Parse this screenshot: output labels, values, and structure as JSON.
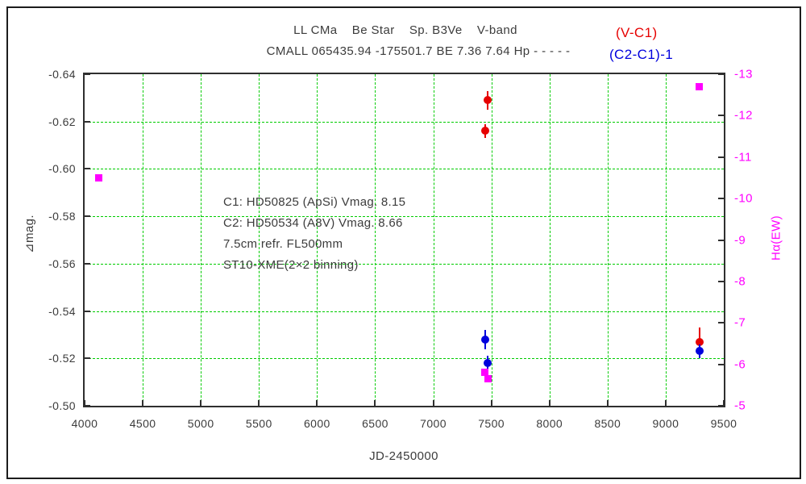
{
  "title": {
    "line1": "LL CMa    Be Star    Sp. B3Ve    V-band",
    "line2": "CMALL 065435.94 -175501.7 BE 7.36 7.64 Hp - - - - -"
  },
  "legend": {
    "items": [
      {
        "label": "(V-C1)",
        "color": "#e60000"
      },
      {
        "label": "(C2-C1)-1",
        "color": "#0000dd"
      }
    ]
  },
  "annotation": {
    "lines": [
      "C1: HD50825 (ApSi) Vmag. 8.15",
      "C2: HD50534 (A8V) Vmag. 8.66",
      "7.5cm refr. FL500mm",
      "ST10-XME(2×2 binning)"
    ]
  },
  "chart_data": {
    "type": "scatter",
    "title": "LL CMa  Be Star  Sp. B3Ve  V-band",
    "subtitle": "CMALL 065435.94 -175501.7 BE 7.36 7.64 Hp - - - - -",
    "xlabel": "JD-2450000",
    "ylabel_left": "⊿mag.",
    "ylabel_right": "Hα(EW)",
    "xlim": [
      4000,
      9500
    ],
    "ylim_left": [
      -0.64,
      -0.5
    ],
    "ylim_right": [
      -13,
      -5
    ],
    "x_ticks": [
      4000,
      4500,
      5000,
      5500,
      6000,
      6500,
      7000,
      7500,
      8000,
      8500,
      9000,
      9500
    ],
    "y_ticks_left": [
      -0.64,
      -0.62,
      -0.6,
      -0.58,
      -0.56,
      -0.54,
      -0.52,
      -0.5
    ],
    "y_ticks_right": [
      -13,
      -12,
      -11,
      -10,
      -9,
      -8,
      -7,
      -6,
      -5
    ],
    "grid": {
      "show": true,
      "style": "dashed",
      "color": "#00cc00"
    },
    "legend_position": "top-right",
    "series": [
      {
        "name": "(V-C1)",
        "axis": "left",
        "marker": "circle",
        "color": "#e60000",
        "points": [
          {
            "x": 7450,
            "y": -0.616,
            "err": 0.003
          },
          {
            "x": 7470,
            "y": -0.629,
            "err": 0.004
          },
          {
            "x": 9295,
            "y": -0.527,
            "err": 0.006
          }
        ]
      },
      {
        "name": "(C2-C1)-1",
        "axis": "left",
        "marker": "circle",
        "color": "#0000dd",
        "points": [
          {
            "x": 7450,
            "y": -0.528,
            "err": 0.004
          },
          {
            "x": 7470,
            "y": -0.518,
            "err": 0.003
          },
          {
            "x": 9295,
            "y": -0.523,
            "err": 0.003
          }
        ]
      },
      {
        "name": "Hα(EW)",
        "axis": "right",
        "marker": "square",
        "color": "#ff00ff",
        "points": [
          {
            "x": 4120,
            "y": -10.5
          },
          {
            "x": 7445,
            "y": -5.8
          },
          {
            "x": 7470,
            "y": -5.65
          },
          {
            "x": 9290,
            "y": -12.7
          }
        ]
      }
    ]
  }
}
